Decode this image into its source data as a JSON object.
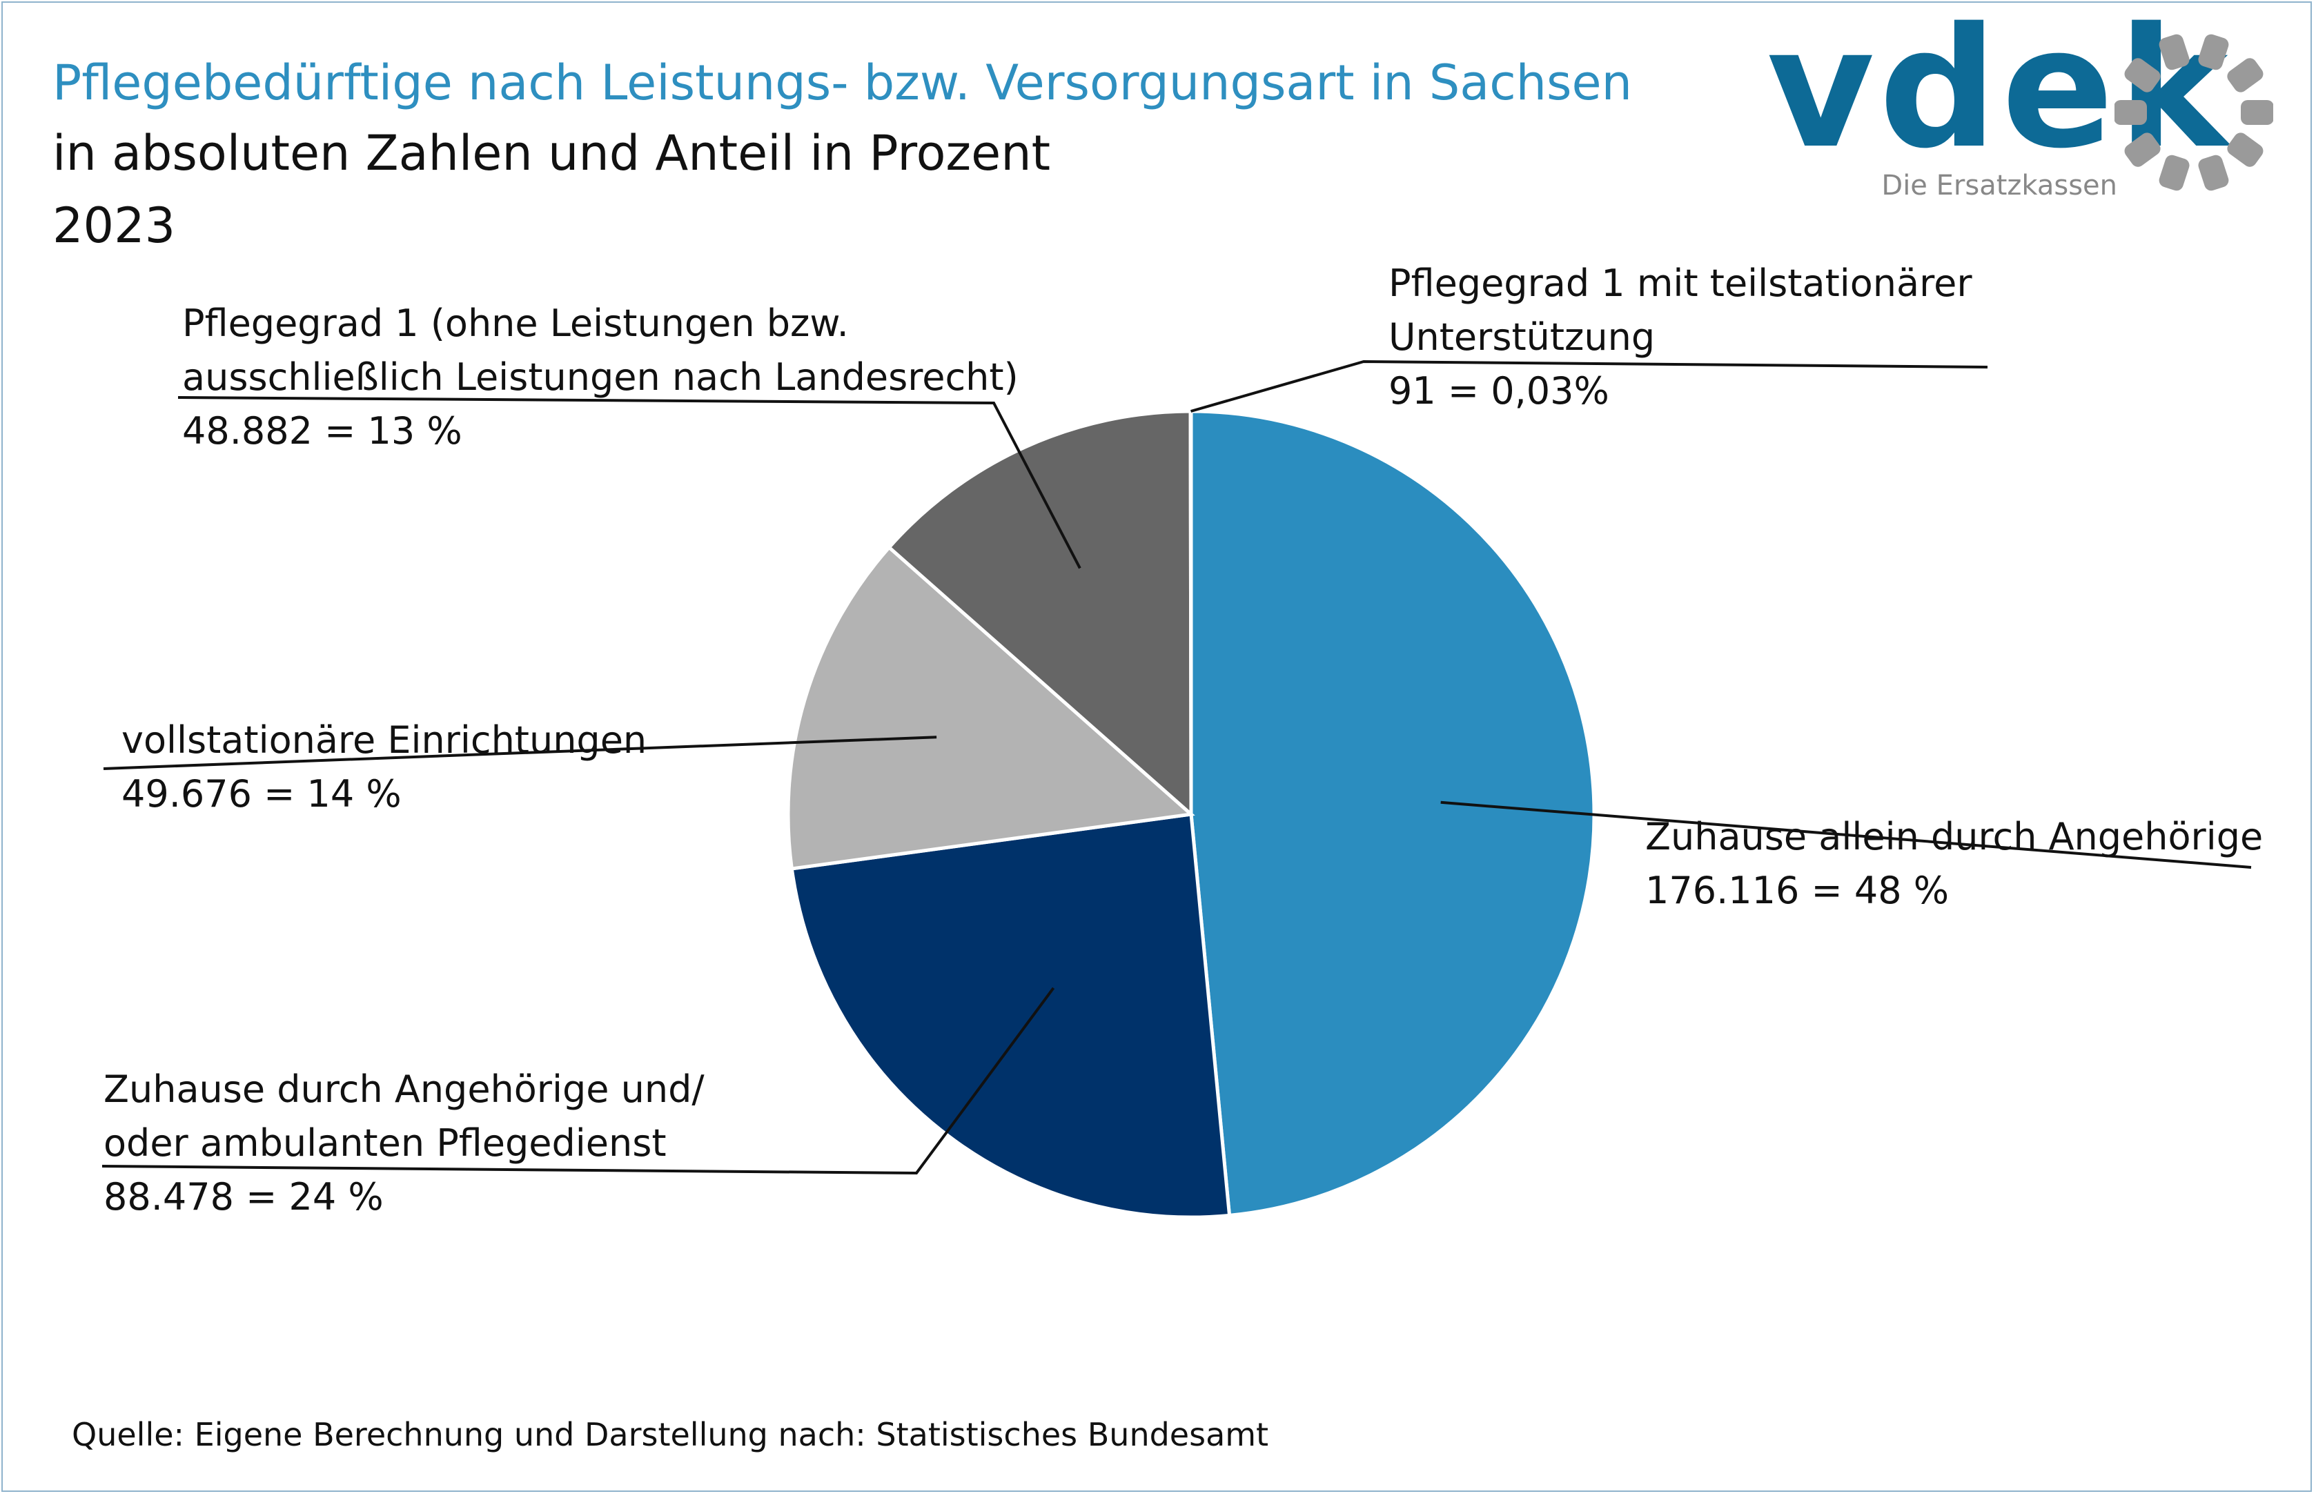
{
  "header": {
    "title": "Pflegebedürftige nach Leistungs- bzw. Versorgungsart in Sachsen",
    "subtitle": "in absoluten Zahlen und Anteil in Prozent",
    "year": "2023"
  },
  "logo": {
    "wordmark": "vdek",
    "tagline": "Die Ersatzkassen"
  },
  "source": "Quelle: Eigene Berechnung und Darstellung nach: Statistisches Bundesamt",
  "chart_data": {
    "type": "pie",
    "title": "Pflegebedürftige nach Leistungs- bzw. Versorgungsart in Sachsen",
    "subtitle": "in absoluten Zahlen und Anteil in Prozent",
    "start_angle_deg": 0,
    "direction": "clockwise",
    "slices": [
      {
        "label_lines": [
          "Zuhause allein durch Angehörige"
        ],
        "value_text": "176.116 = 48 %",
        "value": 176116,
        "color": "#2b8dbf"
      },
      {
        "label_lines": [
          "Zuhause durch Angehörige und/",
          "oder ambulanten Pflegedienst"
        ],
        "value_text": "88.478 = 24 %",
        "value": 88478,
        "color": "#00326a"
      },
      {
        "label_lines": [
          "vollstationäre Einrichtungen"
        ],
        "value_text": "49.676 = 14 %",
        "value": 49676,
        "color": "#b3b3b3"
      },
      {
        "label_lines": [
          "Pflegegrad 1 (ohne Leistungen bzw.",
          "ausschließlich Leistungen nach Landesrecht)"
        ],
        "value_text": "48.882 = 13 %",
        "value": 48882,
        "color": "#666666"
      },
      {
        "label_lines": [
          "Pflegegrad 1 mit teilstationärer",
          "Unterstützung"
        ],
        "value_text": "91 = 0,03%",
        "value": 91,
        "color": "#999999"
      }
    ]
  }
}
